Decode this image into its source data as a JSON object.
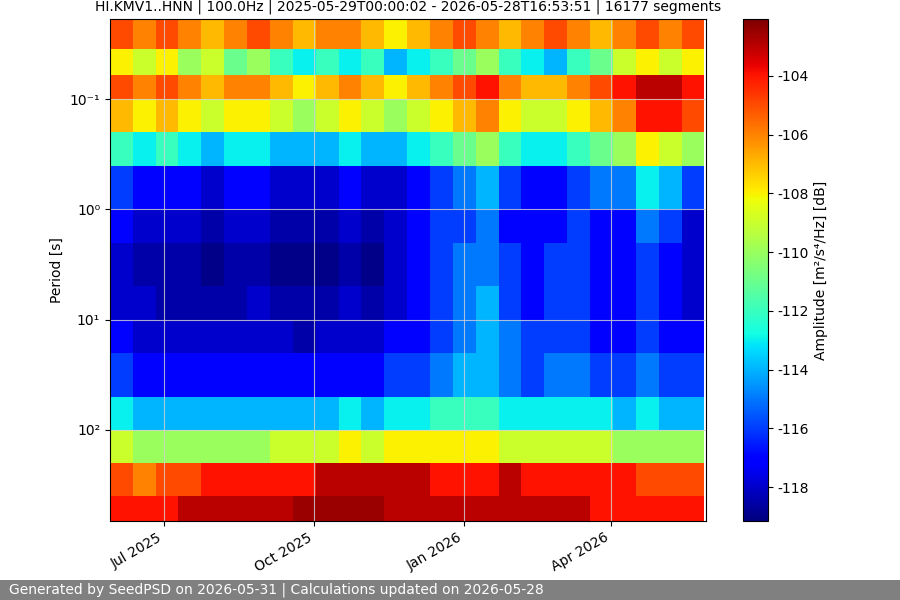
{
  "chart_data": {
    "type": "heatmap",
    "title": "HI.KMV1..HNN | 100.0Hz | 2025-05-29T00:00:02 - 2026-05-28T16:53:51 | 16177 segments",
    "y_label": "Period [s]",
    "colorbar_label": "Amplitude [m²/s⁴/Hz] [dB]",
    "footer": "Generated by SeedPSD on 2026-05-31 | Calculations updated on 2026-05-28",
    "color": "jet",
    "log": "y",
    "grid": true,
    "xlim": [
      "2025-05-29T00:00:02",
      "2026-05-28T16:53:51"
    ],
    "ylim": [
      671,
      0.0188
    ],
    "xticks": [
      {
        "value": "2025-07-01",
        "label": "Jul 2025"
      },
      {
        "value": "2025-10-01",
        "label": "Oct 2025"
      },
      {
        "value": "2026-01-01",
        "label": "Jan 2026"
      },
      {
        "value": "2026-04-01",
        "label": "Apr 2026"
      }
    ],
    "yticks": [
      {
        "value": 0.1,
        "label": "10⁻¹"
      },
      {
        "value": 1,
        "label": "10⁰"
      },
      {
        "value": 10,
        "label": "10¹"
      },
      {
        "value": 100,
        "label": "10²"
      }
    ],
    "colorbar_range": [
      -119.15,
      -102.07
    ],
    "colorbar_ticks": [
      -118,
      -116,
      -114,
      -112,
      -110,
      -108,
      -106,
      -104
    ],
    "x_edges": [
      "2025-05-29",
      "2025-06-12",
      "2025-06-26",
      "2025-07-10",
      "2025-07-24",
      "2025-08-07",
      "2025-08-21",
      "2025-09-04",
      "2025-09-18",
      "2025-10-02",
      "2025-10-16",
      "2025-10-30",
      "2025-11-13",
      "2025-11-27",
      "2025-12-11",
      "2025-12-25",
      "2026-01-08",
      "2026-01-22",
      "2026-02-05",
      "2026-02-19",
      "2026-03-05",
      "2026-03-19",
      "2026-04-02",
      "2026-04-16",
      "2026-04-30",
      "2026-05-14",
      "2026-05-28"
    ],
    "y_edges": [
      0.0188,
      0.035,
      0.06,
      0.1,
      0.2,
      0.4,
      1,
      2,
      5,
      10,
      20,
      50,
      100,
      200,
      400,
      671
    ],
    "cells": [
      [
        -105,
        -106,
        -105,
        -106,
        -107,
        -106,
        -105,
        -106,
        -107,
        -106,
        -106,
        -107,
        -108,
        -107,
        -106,
        -105,
        -106,
        -107,
        -106,
        -105,
        -106,
        -107,
        -106,
        -105,
        -106,
        -105
      ],
      [
        -108,
        -109,
        -108,
        -110,
        -109,
        -111,
        -110,
        -112,
        -113,
        -112,
        -113,
        -112,
        -114,
        -113,
        -112,
        -111,
        -110,
        -112,
        -113,
        -114,
        -112,
        -111,
        -109,
        -108,
        -109,
        -108
      ],
      [
        -105,
        -106,
        -105,
        -106,
        -107,
        -106,
        -106,
        -107,
        -108,
        -107,
        -106,
        -107,
        -108,
        -107,
        -106,
        -105,
        -104,
        -106,
        -107,
        -107,
        -106,
        -105,
        -104,
        -103,
        -103,
        -104
      ],
      [
        -107,
        -108,
        -107,
        -108,
        -109,
        -108,
        -108,
        -109,
        -110,
        -109,
        -108,
        -109,
        -110,
        -109,
        -108,
        -107,
        -106,
        -108,
        -109,
        -109,
        -108,
        -107,
        -106,
        -104,
        -104,
        -105
      ],
      [
        -112,
        -113,
        -112,
        -113,
        -114,
        -113,
        -113,
        -114,
        -114,
        -114,
        -113,
        -114,
        -114,
        -113,
        -112,
        -111,
        -110,
        -112,
        -113,
        -113,
        -112,
        -111,
        -110,
        -108,
        -109,
        -110
      ],
      [
        -116,
        -117,
        -117,
        -117,
        -118,
        -117,
        -117,
        -118,
        -118,
        -118,
        -117,
        -118,
        -118,
        -117,
        -116,
        -115,
        -114,
        -116,
        -117,
        -117,
        -116,
        -115,
        -115,
        -113,
        -114,
        -116
      ],
      [
        -117,
        -118,
        -118,
        -118,
        -118.5,
        -118,
        -118,
        -118.5,
        -118.5,
        -118.5,
        -118,
        -118.5,
        -118,
        -117,
        -116,
        -116,
        -115,
        -117,
        -117,
        -117,
        -116,
        -117,
        -117,
        -115,
        -116,
        -118
      ],
      [
        -118,
        -118.5,
        -118.5,
        -118.5,
        -119,
        -118.5,
        -118.5,
        -119,
        -119,
        -119,
        -118.5,
        -119,
        -118,
        -117,
        -116,
        -115,
        -115,
        -116,
        -117,
        -116,
        -116,
        -117,
        -117,
        -116,
        -117,
        -118
      ],
      [
        -118,
        -118,
        -118.5,
        -118.5,
        -118.5,
        -118.5,
        -118,
        -118.5,
        -118.5,
        -118.5,
        -118,
        -118.5,
        -118,
        -117,
        -116,
        -115,
        -114,
        -116,
        -117,
        -116,
        -116,
        -117,
        -117,
        -116,
        -117,
        -118
      ],
      [
        -117,
        -118,
        -118,
        -118,
        -118,
        -118,
        -118,
        -118,
        -118.5,
        -118,
        -118,
        -118,
        -117,
        -117,
        -116,
        -115,
        -114,
        -115,
        -116,
        -116,
        -116,
        -117,
        -117,
        -116,
        -117,
        -117
      ],
      [
        -116,
        -117,
        -117,
        -117,
        -117,
        -117,
        -117,
        -117,
        -117,
        -117,
        -117,
        -117,
        -116,
        -116,
        -115,
        -114,
        -114,
        -115,
        -116,
        -115,
        -115,
        -116,
        -116,
        -115,
        -116,
        -116
      ],
      [
        -113,
        -114,
        -114,
        -114,
        -114,
        -114,
        -114,
        -114,
        -114,
        -114,
        -113,
        -114,
        -113,
        -113,
        -112,
        -112,
        -112,
        -113,
        -113,
        -113,
        -113,
        -113,
        -114,
        -113,
        -114,
        -114
      ],
      [
        -109,
        -110,
        -110,
        -110,
        -110,
        -110,
        -110,
        -109,
        -109,
        -109,
        -108,
        -109,
        -108,
        -108,
        -108,
        -108,
        -108,
        -109,
        -109,
        -109,
        -109,
        -109,
        -110,
        -110,
        -110,
        -110
      ],
      [
        -105,
        -106,
        -105,
        -105,
        -104,
        -104,
        -104,
        -104,
        -104,
        -103,
        -103,
        -103,
        -103,
        -103,
        -104,
        -104,
        -104,
        -103,
        -104,
        -104,
        -104,
        -104,
        -104,
        -105,
        -105,
        -105
      ],
      [
        -104,
        -104,
        -104,
        -103,
        -103,
        -103,
        -103,
        -103,
        -102.5,
        -102.5,
        -102.5,
        -102.5,
        -103,
        -103,
        -103,
        -103,
        -103,
        -103,
        -103,
        -103,
        -103,
        -104,
        -104,
        -104,
        -104,
        -104
      ]
    ]
  }
}
